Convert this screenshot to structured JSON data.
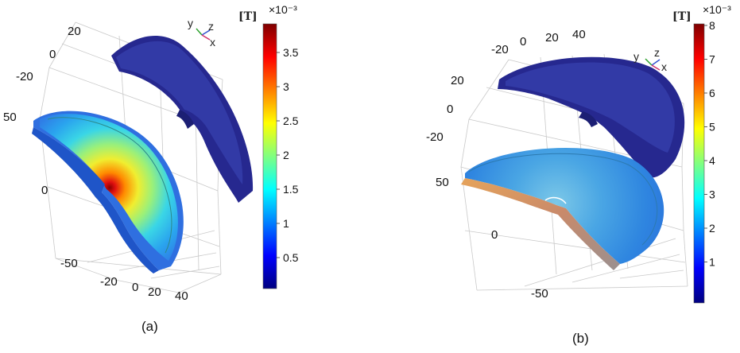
{
  "panels": [
    {
      "caption": "(a)",
      "unit": "[T]",
      "exponent": "×10⁻³",
      "colorbar_ticks": [
        "3.5",
        "3",
        "2.5",
        "2",
        "1.5",
        "1",
        "0.5"
      ],
      "axis_ticks": [
        "20",
        "0",
        "-20",
        "50",
        "0",
        "-50",
        "-20",
        "0",
        "20",
        "40"
      ],
      "triad": {
        "y": "y",
        "z": "z",
        "x": "x"
      }
    },
    {
      "caption": "(b)",
      "unit": "[T]",
      "exponent": "×10⁻³",
      "colorbar_ticks": [
        "8",
        "7",
        "6",
        "5",
        "4",
        "3",
        "2",
        "1"
      ],
      "axis_ticks": [
        "-20",
        "0",
        "20",
        "40",
        "20",
        "0",
        "-20",
        "50",
        "0",
        "-50"
      ],
      "triad": {
        "y": "y",
        "z": "z",
        "x": "x"
      }
    }
  ],
  "colors": {
    "colormap": [
      "#00007f",
      "#0000ff",
      "#0080ff",
      "#00ffff",
      "#80ff80",
      "#ffff00",
      "#ff8000",
      "#ff0000",
      "#7f0000"
    ],
    "upper_part": "#26288f",
    "upper_part_face": "#323aa6",
    "grid": "#c9c9c9"
  }
}
